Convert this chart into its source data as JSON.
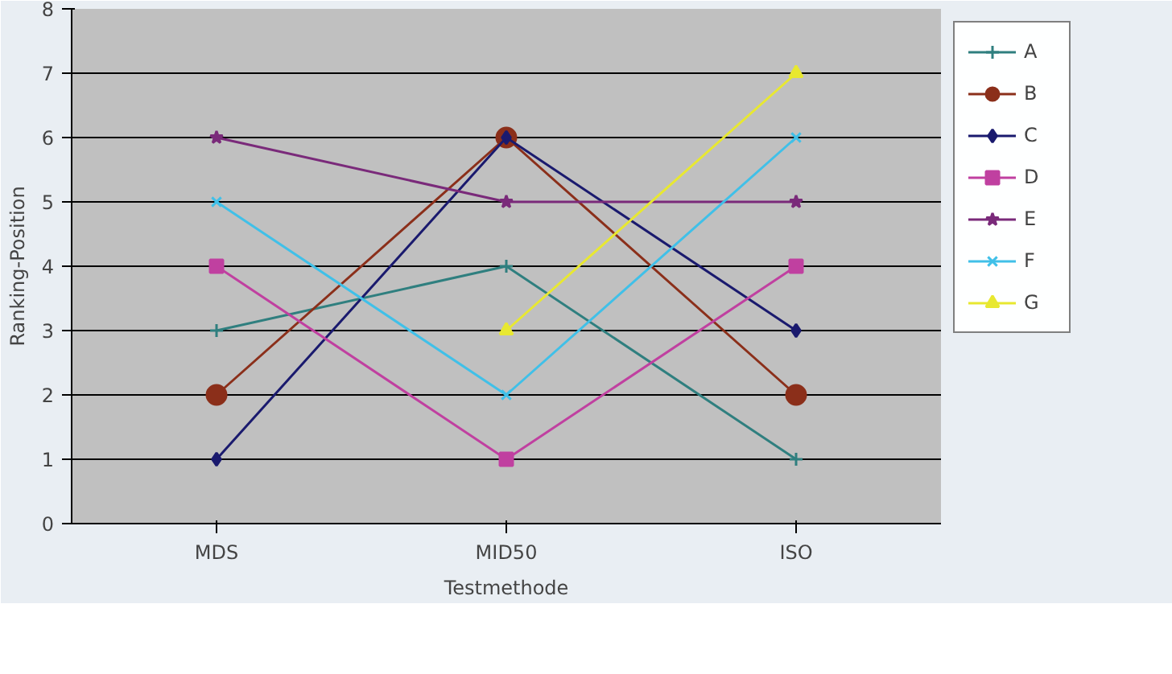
{
  "chart_data": {
    "type": "line",
    "xlabel": "Testmethode",
    "ylabel": "Ranking-Position",
    "categories": [
      "MDS",
      "MID50",
      "ISO"
    ],
    "ylim": [
      0,
      8
    ],
    "yticks": [
      0,
      1,
      2,
      3,
      4,
      5,
      6,
      7,
      8
    ],
    "grid": "y",
    "legend": "right",
    "series": [
      {
        "name": "A",
        "color": "#2f7f7f",
        "marker": "cross",
        "values": [
          3,
          4,
          1
        ]
      },
      {
        "name": "B",
        "color": "#8b2f1a",
        "marker": "circle",
        "values": [
          2,
          6,
          2
        ]
      },
      {
        "name": "C",
        "color": "#1a1a6e",
        "marker": "diamond",
        "values": [
          1,
          6,
          3
        ]
      },
      {
        "name": "D",
        "color": "#c040a0",
        "marker": "square",
        "values": [
          4,
          1,
          4
        ]
      },
      {
        "name": "E",
        "color": "#7a2a7a",
        "marker": "star",
        "values": [
          6,
          5,
          5
        ]
      },
      {
        "name": "F",
        "color": "#40c0e8",
        "marker": "x",
        "values": [
          5,
          2,
          6
        ]
      },
      {
        "name": "G",
        "color": "#e8e830",
        "marker": "triangle",
        "values": [
          null,
          3,
          7
        ]
      }
    ]
  }
}
